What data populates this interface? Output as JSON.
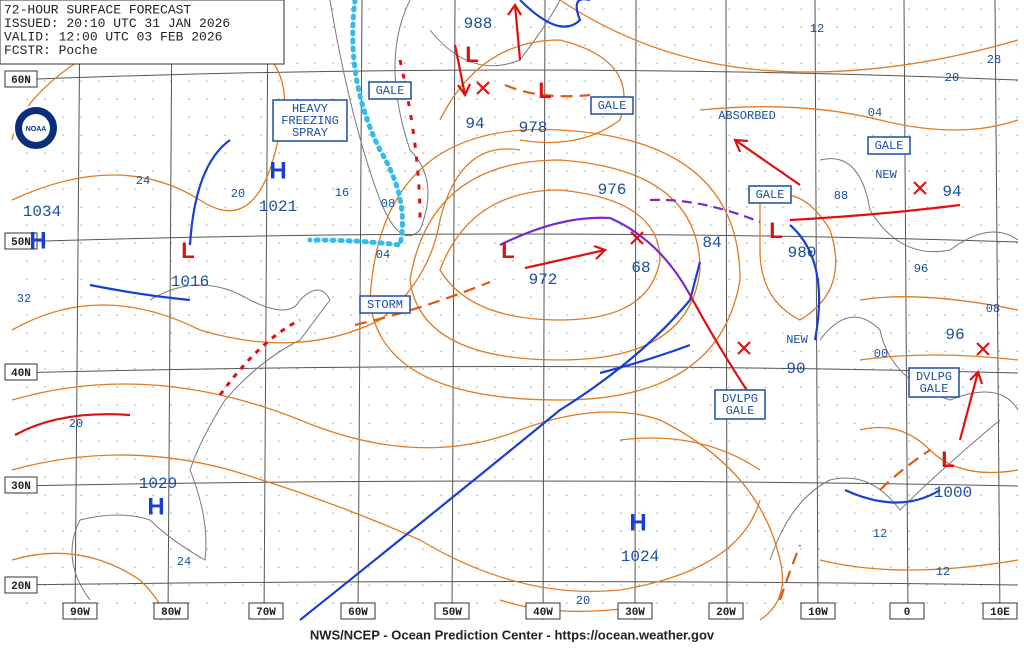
{
  "header": {
    "lines": [
      "72-HOUR SURFACE FORECAST",
      "ISSUED: 20:10 UTC 31 JAN 2026",
      "VALID:  12:00 UTC 03 FEB 2026",
      "FCSTR:  Poche"
    ]
  },
  "logo": "NOAA",
  "longitude_labels": [
    "90W",
    "80W",
    "70W",
    "60W",
    "50W",
    "40W",
    "30W",
    "20W",
    "10W",
    "0",
    "10E"
  ],
  "latitude_labels": [
    "60N",
    "50N",
    "40N",
    "30N",
    "20N"
  ],
  "centers": [
    {
      "symbol": "H",
      "pressure": "1034"
    },
    {
      "symbol": "H",
      "pressure": "1021"
    },
    {
      "symbol": "L",
      "pressure": "1016"
    },
    {
      "symbol": "L",
      "pressure": "988"
    },
    {
      "symbol": "L",
      "pressure": "978"
    },
    {
      "symbol": "L",
      "pressure": "972"
    },
    {
      "symbol": "L",
      "pressure": "980"
    },
    {
      "symbol": "L",
      "pressure": "1000"
    },
    {
      "symbol": "H",
      "pressure": "1029"
    },
    {
      "symbol": "H",
      "pressure": "1024"
    }
  ],
  "pressure_labels": [
    "94",
    "976",
    "68",
    "84",
    "94",
    "90",
    "96"
  ],
  "isobar_labels": [
    "12",
    "20",
    "28",
    "04",
    "24",
    "20",
    "16",
    "08",
    "04",
    "32",
    "88",
    "96",
    "08",
    "00",
    "20",
    "24",
    "12",
    "12",
    "20"
  ],
  "warnings": [
    {
      "lines": [
        "HEAVY",
        "FREEZING",
        "SPRAY"
      ]
    },
    {
      "lines": [
        "GALE"
      ]
    },
    {
      "lines": [
        "GALE"
      ]
    },
    {
      "lines": [
        "GALE"
      ]
    },
    {
      "lines": [
        "GALE"
      ]
    },
    {
      "lines": [
        "STORM"
      ]
    },
    {
      "lines": [
        "DVLPG",
        "GALE"
      ]
    },
    {
      "lines": [
        "DVLPG",
        "GALE"
      ]
    }
  ],
  "annotations": [
    "ABSORBED",
    "NEW",
    "NEW"
  ],
  "footer": "NWS/NCEP - Ocean Prediction Center - https://ocean.weather.gov"
}
